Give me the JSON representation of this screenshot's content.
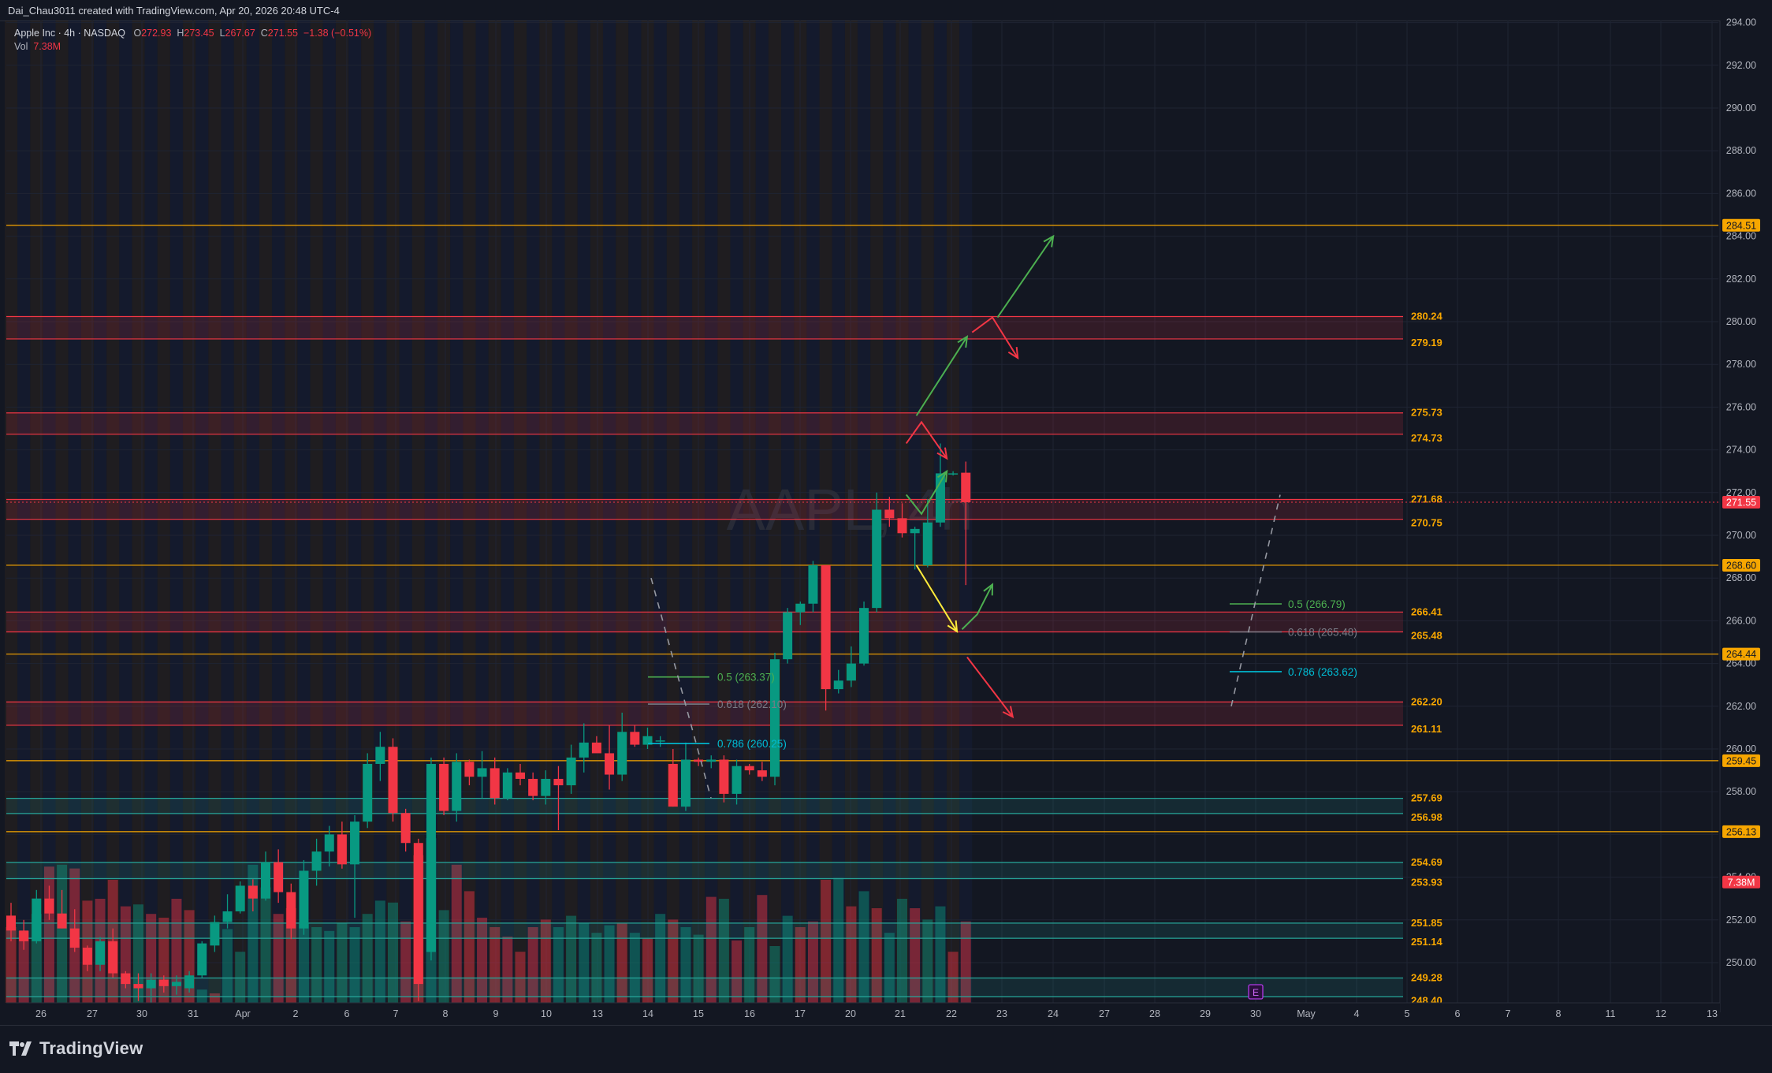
{
  "header": {
    "caption": "Dai_Chau3011 created with TradingView.com, Apr 20, 2026 20:48 UTC-4"
  },
  "legend": {
    "symbol": "Apple Inc · 4h · NASDAQ",
    "o_label": "O",
    "o_value": "272.93",
    "h_label": "H",
    "h_value": "273.45",
    "l_label": "L",
    "l_value": "267.67",
    "c_label": "C",
    "c_value": "271.55",
    "change": "−1.38 (−0.51%)",
    "vol_label": "Vol",
    "vol_value": "7.38M"
  },
  "watermark": "AAPL, 4h",
  "footer": {
    "brand": "TradingView"
  },
  "colors": {
    "bg": "#131722",
    "up": "#089981",
    "down": "#f23645",
    "grid": "#1f2433",
    "red_zone": "#f23645",
    "green_zone": "#26a69a",
    "orange_line": "#f7a600"
  },
  "chart_data": {
    "type": "candlestick",
    "symbol": "AAPL",
    "interval": "4h",
    "ylim": [
      248.0,
      294.0
    ],
    "y_ticks": [
      "250.00",
      "252.00",
      "254.00",
      "256.00",
      "258.00",
      "260.00",
      "262.00",
      "264.00",
      "266.00",
      "268.00",
      "270.00",
      "272.00",
      "274.00",
      "276.00",
      "278.00",
      "280.00",
      "282.00",
      "284.00",
      "286.00",
      "288.00",
      "290.00",
      "292.00",
      "294.00"
    ],
    "x_ticks": [
      "26",
      "27",
      "30",
      "31",
      "Apr",
      "2",
      "6",
      "7",
      "8",
      "9",
      "10",
      "13",
      "14",
      "15",
      "16",
      "17",
      "20",
      "21",
      "22",
      "23",
      "24",
      "27",
      "28",
      "29",
      "30",
      "May",
      "4",
      "5",
      "6",
      "7",
      "8",
      "11",
      "12",
      "13"
    ],
    "candles": [
      [
        252.2,
        252.8,
        251.0,
        251.5
      ],
      [
        251.5,
        252.0,
        250.6,
        251.0
      ],
      [
        251.0,
        253.4,
        250.9,
        253.0
      ],
      [
        253.0,
        253.6,
        252.0,
        252.3
      ],
      [
        252.3,
        253.4,
        251.6,
        251.6
      ],
      [
        251.6,
        252.5,
        250.5,
        250.7
      ],
      [
        250.7,
        250.8,
        249.6,
        249.9
      ],
      [
        249.9,
        251.2,
        249.6,
        251.0
      ],
      [
        251.0,
        251.6,
        249.3,
        249.5
      ],
      [
        249.5,
        249.6,
        248.8,
        249.0
      ],
      [
        249.0,
        249.5,
        248.2,
        248.8
      ],
      [
        248.8,
        249.5,
        248.0,
        249.2
      ],
      [
        249.2,
        249.4,
        248.6,
        248.9
      ],
      [
        248.9,
        249.4,
        248.5,
        249.1
      ],
      [
        248.8,
        249.6,
        248.6,
        249.4
      ],
      [
        249.4,
        251.0,
        249.3,
        250.9
      ],
      [
        250.8,
        252.2,
        250.5,
        251.9
      ],
      [
        251.9,
        253.2,
        251.6,
        252.4
      ],
      [
        252.4,
        253.8,
        252.3,
        253.6
      ],
      [
        253.6,
        253.9,
        252.4,
        253.0
      ],
      [
        253.0,
        255.2,
        252.9,
        254.7
      ],
      [
        254.7,
        255.3,
        252.8,
        253.3
      ],
      [
        253.3,
        253.7,
        251.1,
        251.6
      ],
      [
        251.6,
        254.8,
        251.3,
        254.3
      ],
      [
        254.3,
        255.8,
        253.6,
        255.2
      ],
      [
        255.2,
        256.4,
        254.5,
        256.0
      ],
      [
        256.0,
        256.6,
        254.4,
        254.6
      ],
      [
        254.6,
        256.9,
        252.1,
        256.6
      ],
      [
        256.6,
        259.8,
        256.3,
        259.3
      ],
      [
        259.3,
        260.8,
        258.5,
        260.1
      ],
      [
        260.1,
        260.5,
        256.6,
        257.0
      ],
      [
        257.0,
        257.2,
        255.2,
        255.6
      ],
      [
        255.6,
        255.8,
        248.2,
        249.0
      ],
      [
        250.5,
        259.6,
        250.1,
        259.3
      ],
      [
        259.3,
        259.6,
        256.9,
        257.1
      ],
      [
        257.1,
        259.8,
        256.6,
        259.4
      ],
      [
        259.4,
        259.5,
        258.3,
        258.7
      ],
      [
        258.7,
        259.9,
        257.7,
        259.1
      ],
      [
        259.1,
        259.6,
        257.4,
        257.7
      ],
      [
        257.7,
        259.1,
        257.6,
        258.9
      ],
      [
        258.9,
        259.3,
        258.3,
        258.6
      ],
      [
        258.6,
        258.9,
        257.6,
        257.8
      ],
      [
        257.8,
        259.0,
        257.4,
        258.6
      ],
      [
        258.6,
        259.2,
        256.2,
        258.3
      ],
      [
        258.3,
        260.2,
        257.9,
        259.6
      ],
      [
        259.6,
        261.2,
        258.9,
        260.3
      ],
      [
        260.3,
        260.6,
        259.9,
        259.8
      ],
      [
        259.8,
        261.1,
        258.1,
        258.8
      ],
      [
        258.8,
        261.7,
        258.5,
        260.8
      ],
      [
        260.8,
        261.1,
        260.1,
        260.2
      ],
      [
        260.2,
        261.0,
        260.0,
        260.6
      ],
      [
        260.4,
        260.6,
        260.1,
        260.4
      ],
      [
        259.3,
        260.0,
        257.3,
        257.3
      ],
      [
        257.3,
        260.3,
        257.1,
        259.5
      ],
      [
        259.5,
        259.6,
        259.2,
        259.4
      ],
      [
        259.4,
        259.7,
        259.1,
        259.5
      ],
      [
        259.5,
        259.7,
        257.5,
        257.9
      ],
      [
        257.9,
        259.5,
        257.4,
        259.2
      ],
      [
        259.2,
        259.3,
        258.8,
        259.0
      ],
      [
        259.0,
        259.4,
        258.5,
        258.7
      ],
      [
        258.7,
        264.5,
        258.3,
        264.2
      ],
      [
        264.2,
        266.6,
        264.0,
        266.4
      ],
      [
        266.4,
        266.9,
        265.8,
        266.8
      ],
      [
        266.8,
        268.8,
        266.4,
        268.6
      ],
      [
        268.6,
        268.6,
        261.8,
        262.8
      ],
      [
        262.8,
        263.7,
        262.6,
        263.2
      ],
      [
        263.2,
        264.8,
        262.9,
        264.0
      ],
      [
        264.0,
        266.9,
        263.9,
        266.6
      ],
      [
        266.6,
        272.0,
        266.4,
        271.2
      ],
      [
        271.2,
        271.8,
        270.4,
        270.8
      ],
      [
        270.8,
        271.5,
        269.9,
        270.1
      ],
      [
        270.1,
        270.4,
        268.4,
        270.3
      ],
      [
        268.6,
        271.7,
        268.5,
        270.6
      ],
      [
        270.6,
        274.3,
        270.4,
        272.9
      ],
      [
        272.9,
        273.0,
        272.8,
        272.9
      ],
      [
        272.93,
        273.45,
        267.67,
        271.55
      ]
    ],
    "volume_scale_note": "volume bars in relative units, latest bar 7.38M",
    "volume": [
      [
        0.4,
        0
      ],
      [
        0.38,
        0
      ],
      [
        0.47,
        1
      ],
      [
        0.72,
        0
      ],
      [
        0.73,
        1
      ],
      [
        0.71,
        0
      ],
      [
        0.54,
        0
      ],
      [
        0.55,
        0
      ],
      [
        0.65,
        0
      ],
      [
        0.51,
        0
      ],
      [
        0.52,
        1
      ],
      [
        0.47,
        0
      ],
      [
        0.45,
        0
      ],
      [
        0.55,
        0
      ],
      [
        0.49,
        0
      ],
      [
        0.07,
        1
      ],
      [
        0.05,
        0
      ],
      [
        0.39,
        1
      ],
      [
        0.27,
        1
      ],
      [
        0.73,
        1
      ],
      [
        0.61,
        1
      ],
      [
        0.47,
        0
      ],
      [
        0.5,
        0
      ],
      [
        0.42,
        1
      ],
      [
        0.4,
        1
      ],
      [
        0.38,
        1
      ],
      [
        0.42,
        1
      ],
      [
        0.4,
        1
      ],
      [
        0.47,
        1
      ],
      [
        0.54,
        1
      ],
      [
        0.53,
        1
      ],
      [
        0.43,
        0
      ],
      [
        0.78,
        0
      ],
      [
        0.87,
        1
      ],
      [
        0.49,
        1
      ],
      [
        0.73,
        0
      ],
      [
        0.59,
        0
      ],
      [
        0.45,
        0
      ],
      [
        0.4,
        0
      ],
      [
        0.35,
        0
      ],
      [
        0.27,
        0
      ],
      [
        0.4,
        0
      ],
      [
        0.44,
        0
      ],
      [
        0.4,
        1
      ],
      [
        0.46,
        1
      ],
      [
        0.42,
        1
      ],
      [
        0.37,
        1
      ],
      [
        0.41,
        1
      ],
      [
        0.42,
        0
      ],
      [
        0.37,
        1
      ],
      [
        0.34,
        0
      ],
      [
        0.47,
        1
      ],
      [
        0.44,
        0
      ],
      [
        0.4,
        1
      ],
      [
        0.36,
        1
      ],
      [
        0.56,
        0
      ],
      [
        0.55,
        1
      ],
      [
        0.33,
        0
      ],
      [
        0.4,
        1
      ],
      [
        0.57,
        0
      ],
      [
        0.3,
        1
      ],
      [
        0.46,
        1
      ],
      [
        0.4,
        0
      ],
      [
        0.43,
        0
      ],
      [
        0.65,
        0
      ],
      [
        0.66,
        1
      ],
      [
        0.51,
        0
      ],
      [
        0.59,
        1
      ],
      [
        0.5,
        0
      ],
      [
        0.37,
        1
      ],
      [
        0.55,
        1
      ],
      [
        0.5,
        0
      ],
      [
        0.44,
        1
      ],
      [
        0.51,
        1
      ],
      [
        0.27,
        0
      ],
      [
        0.43,
        0
      ]
    ],
    "zones_red": [
      {
        "hi": 280.24,
        "lo": 279.19,
        "hi_label": "280.24",
        "lo_label": "279.19"
      },
      {
        "hi": 275.73,
        "lo": 274.73,
        "hi_label": "275.73",
        "lo_label": "274.73"
      },
      {
        "hi": 271.68,
        "lo": 270.75,
        "hi_label": "271.68",
        "lo_label": "270.75"
      },
      {
        "hi": 266.41,
        "lo": 265.48,
        "hi_label": "266.41",
        "lo_label": "265.48"
      },
      {
        "hi": 262.2,
        "lo": 261.11,
        "hi_label": "262.20",
        "lo_label": "261.11"
      }
    ],
    "zones_green": [
      {
        "hi": 257.69,
        "lo": 256.98,
        "hi_label": "257.69",
        "lo_label": "256.98"
      },
      {
        "hi": 254.69,
        "lo": 253.93,
        "hi_label": "254.69",
        "lo_label": "253.93"
      },
      {
        "hi": 251.85,
        "lo": 251.14,
        "hi_label": "251.85",
        "lo_label": "251.14"
      },
      {
        "hi": 249.28,
        "lo": 248.4,
        "hi_label": "249.28",
        "lo_label": "248.40"
      }
    ],
    "orange_lines": [
      {
        "price": 284.51,
        "label": "284.51"
      },
      {
        "price": 268.6,
        "label": "268.60"
      },
      {
        "price": 264.44,
        "label": "264.44"
      },
      {
        "price": 259.45,
        "label": "259.45"
      },
      {
        "price": 256.13,
        "label": "256.13"
      }
    ],
    "last_price": {
      "price": 271.55,
      "label": "271.55"
    },
    "volume_tag": {
      "label": "7.38M"
    },
    "fib_left": [
      {
        "label": "0.5 (263.37)",
        "price": 263.37,
        "color": "#4caf50"
      },
      {
        "label": "0.618 (262.10)",
        "price": 262.1,
        "color": "#787b86"
      },
      {
        "label": "0.786 (260.25)",
        "price": 260.25,
        "color": "#00bcd4"
      }
    ],
    "fib_right": [
      {
        "label": "0.5 (266.79)",
        "price": 266.79,
        "color": "#4caf50"
      },
      {
        "label": "0.618 (265.48)",
        "price": 265.48,
        "color": "#787b86"
      },
      {
        "label": "0.786 (263.62)",
        "price": 263.62,
        "color": "#00bcd4"
      }
    ],
    "earnings_marker": "E",
    "arrows": [
      {
        "color": "#4caf50",
        "points": [
          [
            21.3,
            275.6
          ],
          [
            22.3,
            279.3
          ]
        ]
      },
      {
        "color": "#4caf50",
        "points": [
          [
            22.9,
            280.2
          ],
          [
            24.0,
            284.0
          ]
        ]
      },
      {
        "color": "#f23645",
        "points": [
          [
            22.4,
            279.5
          ],
          [
            22.8,
            280.2
          ],
          [
            23.3,
            278.3
          ]
        ]
      },
      {
        "color": "#f23645",
        "points": [
          [
            21.1,
            274.3
          ],
          [
            21.4,
            275.3
          ],
          [
            21.9,
            273.6
          ]
        ]
      },
      {
        "color": "#4caf50",
        "points": [
          [
            21.1,
            271.9
          ],
          [
            21.4,
            271.0
          ],
          [
            21.9,
            273.0
          ]
        ]
      },
      {
        "color": "#ffeb3b",
        "points": [
          [
            21.3,
            268.6
          ],
          [
            22.1,
            265.5
          ]
        ]
      },
      {
        "color": "#4caf50",
        "points": [
          [
            22.2,
            265.6
          ],
          [
            22.5,
            266.3
          ],
          [
            22.8,
            267.7
          ]
        ]
      },
      {
        "color": "#f23645",
        "points": [
          [
            22.3,
            264.3
          ],
          [
            23.2,
            261.5
          ]
        ]
      }
    ]
  }
}
